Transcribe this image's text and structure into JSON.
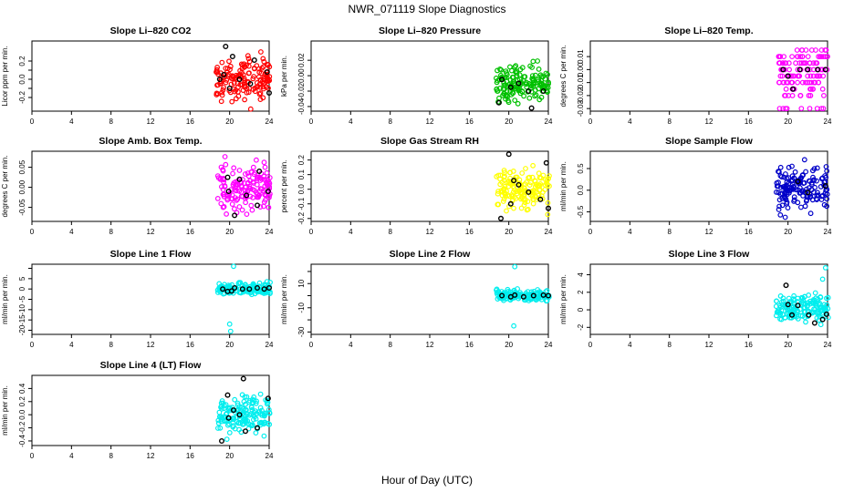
{
  "title": "NWR_071119  Slope Diagnostics",
  "xlabel": "Hour of Day (UTC)",
  "chart_data": [
    {
      "type": "scatter",
      "title": "Slope Li–820 CO2",
      "ylabel": "Licor ppm per min.",
      "color": "#ff0000",
      "xlim": [
        0,
        24
      ],
      "ylim": [
        -0.35,
        0.42
      ],
      "xticks": [
        0,
        4,
        8,
        12,
        16,
        20,
        24
      ],
      "yticks": [
        -0.2,
        -0.1,
        0.0,
        0.1,
        0.2
      ],
      "ytick_labels": [
        "-0.2",
        "",
        "0.0",
        "",
        "0.2"
      ],
      "xrange": [
        18.6,
        24.1
      ],
      "ycenter": 0.0,
      "yspread": 0.11,
      "black_points": [
        [
          19.6,
          0.36
        ],
        [
          20.3,
          0.25
        ],
        [
          19.4,
          0.05
        ],
        [
          20.0,
          -0.1
        ],
        [
          21.0,
          0.0
        ],
        [
          22.1,
          -0.05
        ],
        [
          23.8,
          0.08
        ],
        [
          24.0,
          -0.15
        ],
        [
          22.5,
          0.21
        ],
        [
          19.0,
          0.0
        ]
      ]
    },
    {
      "type": "scatter",
      "title": "Slope Li–820 Pressure",
      "ylabel": "kPa per min.",
      "color": "#00c000",
      "xlim": [
        0,
        24
      ],
      "ylim": [
        -0.046,
        0.045
      ],
      "xticks": [
        0,
        4,
        8,
        12,
        16,
        20,
        24
      ],
      "yticks": [
        -0.04,
        -0.02,
        0.0,
        0.02
      ],
      "ytick_labels": [
        "-0.04",
        "-0.02",
        "0.00",
        "0.02"
      ],
      "xrange": [
        18.7,
        24.1
      ],
      "ycenter": -0.01,
      "yspread": 0.012,
      "black_points": [
        [
          19.0,
          -0.035
        ],
        [
          19.3,
          -0.005
        ],
        [
          20.2,
          -0.015
        ],
        [
          22.3,
          -0.042
        ],
        [
          21.0,
          -0.01
        ],
        [
          23.5,
          -0.02
        ],
        [
          22.0,
          -0.02
        ]
      ]
    },
    {
      "type": "strip",
      "title": "Slope Li–820 Temp.",
      "ylabel": "degrees C per min.",
      "color": "#ff00ff",
      "xlim": [
        0,
        24
      ],
      "ylim": [
        -0.032,
        0.022
      ],
      "xticks": [
        0,
        4,
        8,
        12,
        16,
        20,
        24
      ],
      "yticks": [
        -0.03,
        -0.02,
        -0.01,
        0.0,
        0.01
      ],
      "ytick_labels": [
        "-0.03",
        "-0.02",
        "-0.01",
        "0.00",
        "0.01"
      ],
      "levels": [
        0.015,
        0.01,
        0.005,
        0.0,
        -0.005,
        -0.01,
        -0.015,
        -0.02,
        -0.03
      ],
      "xrange": [
        19.0,
        24.0
      ],
      "black_points": [
        [
          19.5,
          0.0
        ],
        [
          20.0,
          -0.005
        ],
        [
          20.5,
          -0.015
        ],
        [
          21.2,
          0.0
        ],
        [
          22.0,
          0.0
        ],
        [
          23.0,
          0.0
        ],
        [
          23.8,
          0.0
        ]
      ]
    },
    {
      "type": "scatter",
      "title": "Slope Amb. Box Temp.",
      "ylabel": "degrees C per min.",
      "color": "#ff00ff",
      "xlim": [
        0,
        24
      ],
      "ylim": [
        -0.085,
        0.09
      ],
      "xticks": [
        0,
        4,
        8,
        12,
        16,
        20,
        24
      ],
      "yticks": [
        -0.05,
        0.0,
        0.05
      ],
      "ytick_labels": [
        "-0.05",
        "0.00",
        "0.05"
      ],
      "xrange": [
        18.8,
        24.1
      ],
      "ycenter": 0.0,
      "yspread": 0.032,
      "black_points": [
        [
          19.9,
          -0.01
        ],
        [
          20.5,
          -0.07
        ],
        [
          19.8,
          0.025
        ],
        [
          21.7,
          -0.02
        ],
        [
          23.9,
          -0.01
        ],
        [
          22.8,
          -0.045
        ],
        [
          23.0,
          0.04
        ],
        [
          21.0,
          0.02
        ]
      ]
    },
    {
      "type": "scatter",
      "title": "Slope Gas Stream RH",
      "ylabel": "percent per min.",
      "color": "#ffff00",
      "xlim": [
        0,
        24
      ],
      "ylim": [
        -0.22,
        0.26
      ],
      "xticks": [
        0,
        4,
        8,
        12,
        16,
        20,
        24
      ],
      "yticks": [
        -0.2,
        -0.1,
        0.0,
        0.1,
        0.2
      ],
      "ytick_labels": [
        "-0.2",
        "-0.1",
        "0.0",
        "0.1",
        "0.2"
      ],
      "xrange": [
        18.7,
        24.1
      ],
      "ycenter": 0.0,
      "yspread": 0.065,
      "black_points": [
        [
          20.0,
          0.24
        ],
        [
          19.2,
          -0.2
        ],
        [
          20.2,
          -0.1
        ],
        [
          21.0,
          0.03
        ],
        [
          22.0,
          -0.02
        ],
        [
          23.8,
          0.18
        ],
        [
          23.2,
          -0.07
        ],
        [
          24.0,
          -0.13
        ],
        [
          20.5,
          0.06
        ]
      ]
    },
    {
      "type": "scatter",
      "title": "Slope Sample Flow",
      "ylabel": "ml/min per min.",
      "color": "#0000c8",
      "xlim": [
        0,
        24
      ],
      "ylim": [
        -0.72,
        0.9
      ],
      "xticks": [
        0,
        4,
        8,
        12,
        16,
        20,
        24
      ],
      "yticks": [
        -0.5,
        0.0,
        0.5
      ],
      "ytick_labels": [
        "-0.5",
        "0.0",
        "0.5"
      ],
      "xrange": [
        18.8,
        24.1
      ],
      "ycenter": 0.05,
      "yspread": 0.23,
      "black_points": [
        [
          22.0,
          -0.05
        ],
        [
          23.8,
          0.1
        ],
        [
          21.0,
          0.2
        ]
      ]
    },
    {
      "type": "scatter",
      "title": "Slope Line 1 Flow",
      "ylabel": "ml/min per min.",
      "color": "#00eeee",
      "xlim": [
        0,
        24
      ],
      "ylim": [
        -22,
        12
      ],
      "xticks": [
        0,
        4,
        8,
        12,
        16,
        20,
        24
      ],
      "yticks": [
        -20,
        -15,
        -10,
        -5,
        0,
        5,
        10
      ],
      "ytick_labels": [
        "-20",
        "-15",
        "-10",
        "-5",
        "0",
        "5",
        ""
      ],
      "xrange": [
        18.7,
        24.1
      ],
      "ycenter": 0.0,
      "yspread": 1.3,
      "outliers": [
        [
          20.4,
          11.0
        ],
        [
          20.0,
          -17.0
        ],
        [
          20.1,
          -20.5
        ]
      ],
      "black_points": [
        [
          19.3,
          0.0
        ],
        [
          20.2,
          -1.0
        ],
        [
          20.5,
          0.5
        ],
        [
          21.3,
          0.0
        ],
        [
          22.0,
          0.0
        ],
        [
          22.8,
          0.5
        ],
        [
          23.5,
          0.0
        ],
        [
          24.0,
          0.5
        ],
        [
          19.8,
          -1.2
        ]
      ]
    },
    {
      "type": "scatter",
      "title": "Slope Line 2 Flow",
      "ylabel": "ml/min per min.",
      "color": "#00eeee",
      "xlim": [
        0,
        24
      ],
      "ylim": [
        -32,
        26
      ],
      "xticks": [
        0,
        4,
        8,
        12,
        16,
        20,
        24
      ],
      "yticks": [
        -30,
        -20,
        -10,
        0,
        10,
        20
      ],
      "ytick_labels": [
        "-30",
        "",
        "-10",
        "",
        "10",
        ""
      ],
      "xrange": [
        18.7,
        24.1
      ],
      "ycenter": 0.0,
      "yspread": 2.2,
      "outliers": [
        [
          20.6,
          24.0
        ],
        [
          20.5,
          -25.0
        ]
      ],
      "black_points": [
        [
          19.3,
          0.0
        ],
        [
          20.2,
          -1.0
        ],
        [
          20.6,
          0.5
        ],
        [
          21.5,
          -1.0
        ],
        [
          22.5,
          0.0
        ],
        [
          23.5,
          0.5
        ],
        [
          24.0,
          0.0
        ]
      ]
    },
    {
      "type": "scatter",
      "title": "Slope Line 3 Flow",
      "ylabel": "ml/min per min.",
      "color": "#00eeee",
      "xlim": [
        0,
        24
      ],
      "ylim": [
        -2.8,
        5.2
      ],
      "xticks": [
        0,
        4,
        8,
        12,
        16,
        20,
        24
      ],
      "yticks": [
        -2,
        0,
        2,
        4
      ],
      "ytick_labels": [
        "-2",
        "0",
        "2",
        "4"
      ],
      "xrange": [
        18.8,
        24.1
      ],
      "ycenter": 0.2,
      "yspread": 0.75,
      "outliers": [
        [
          23.8,
          4.8
        ],
        [
          23.5,
          3.5
        ]
      ],
      "black_points": [
        [
          19.8,
          2.8
        ],
        [
          20.0,
          0.6
        ],
        [
          20.4,
          -0.6
        ],
        [
          21.0,
          0.5
        ],
        [
          22.1,
          -0.6
        ],
        [
          22.7,
          -1.5
        ],
        [
          23.5,
          -1.1
        ],
        [
          23.9,
          -0.5
        ]
      ]
    },
    {
      "type": "scatter",
      "title": "Slope Line 4 (LT) Flow",
      "ylabel": "ml/min per min.",
      "color": "#00eeee",
      "xlim": [
        0,
        24
      ],
      "ylim": [
        -0.47,
        0.6
      ],
      "xticks": [
        0,
        4,
        8,
        12,
        16,
        20,
        24
      ],
      "yticks": [
        -0.4,
        -0.2,
        0.0,
        0.2,
        0.4
      ],
      "ytick_labels": [
        "-0.4",
        "-0.2",
        "0.0",
        "0.2",
        "0.4"
      ],
      "xrange": [
        18.8,
        24.1
      ],
      "ycenter": 0.0,
      "yspread": 0.14,
      "black_points": [
        [
          19.2,
          -0.4
        ],
        [
          19.8,
          0.3
        ],
        [
          19.9,
          -0.05
        ],
        [
          20.4,
          0.07
        ],
        [
          21.0,
          0.0
        ],
        [
          21.6,
          -0.25
        ],
        [
          22.8,
          -0.2
        ],
        [
          23.9,
          0.25
        ],
        [
          21.4,
          0.55
        ]
      ]
    }
  ]
}
